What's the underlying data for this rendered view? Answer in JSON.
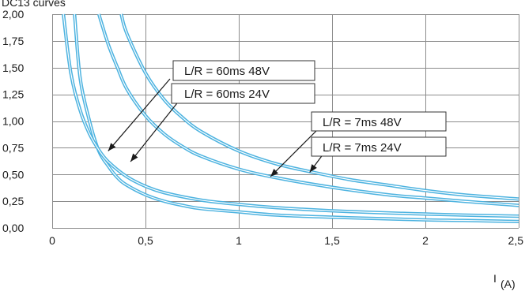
{
  "title": "DC13 curves",
  "chart_data": {
    "type": "line",
    "xlabel": "I",
    "xlabel_sub": "(A)",
    "ylabel": "",
    "xlim": [
      0,
      2.5
    ],
    "ylim": [
      0,
      2.0
    ],
    "x_ticks": [
      "0",
      "0,5",
      "1",
      "1,5",
      "2",
      "2,5"
    ],
    "y_ticks": [
      "0,00",
      "0,25",
      "0,50",
      "0,75",
      "1,00",
      "1,25",
      "1,50",
      "1,75",
      "2,00"
    ],
    "grid": true,
    "line_color": "#4db3e0",
    "series": [
      {
        "x": [
          0.12,
          0.15,
          0.2,
          0.25,
          0.3,
          0.35,
          0.4,
          0.5,
          0.6,
          0.7,
          0.8,
          1.0,
          1.2,
          1.5,
          1.8,
          2.0,
          2.2,
          2.5
        ],
        "y": [
          2.0,
          1.4,
          1.0,
          0.72,
          0.58,
          0.47,
          0.4,
          0.31,
          0.25,
          0.21,
          0.18,
          0.15,
          0.12,
          0.1,
          0.085,
          0.075,
          0.07,
          0.06
        ]
      },
      {
        "x": [
          0.06,
          0.1,
          0.15,
          0.2,
          0.25,
          0.3,
          0.4,
          0.5,
          0.6,
          0.8,
          1.0,
          1.2,
          1.5,
          1.8,
          2.0,
          2.2,
          2.5
        ],
        "y": [
          2.0,
          1.45,
          1.1,
          0.88,
          0.73,
          0.62,
          0.48,
          0.39,
          0.33,
          0.26,
          0.22,
          0.19,
          0.16,
          0.14,
          0.13,
          0.12,
          0.11
        ]
      },
      {
        "x": [
          0.25,
          0.3,
          0.35,
          0.4,
          0.5,
          0.6,
          0.7,
          0.8,
          1.0,
          1.2,
          1.5,
          1.8,
          2.0,
          2.2,
          2.5
        ],
        "y": [
          2.0,
          1.72,
          1.5,
          1.3,
          1.05,
          0.88,
          0.76,
          0.67,
          0.55,
          0.47,
          0.38,
          0.31,
          0.28,
          0.25,
          0.21
        ]
      },
      {
        "x": [
          0.37,
          0.4,
          0.5,
          0.6,
          0.7,
          0.8,
          1.0,
          1.2,
          1.4,
          1.6,
          1.8,
          2.0,
          2.2,
          2.5
        ],
        "y": [
          2.0,
          1.82,
          1.45,
          1.2,
          1.03,
          0.9,
          0.72,
          0.6,
          0.52,
          0.45,
          0.4,
          0.35,
          0.31,
          0.27
        ]
      }
    ],
    "annotations": [
      {
        "text": "L/R = 60ms 48V",
        "arrow_to": [
          0.3,
          0.72
        ]
      },
      {
        "text": "L/R = 60ms 24V",
        "arrow_to": [
          0.42,
          0.62
        ]
      },
      {
        "text": "L/R = 7ms 48V",
        "arrow_to": [
          1.17,
          0.48
        ]
      },
      {
        "text": "L/R = 7ms 24V",
        "arrow_to": [
          1.38,
          0.52
        ]
      }
    ]
  }
}
